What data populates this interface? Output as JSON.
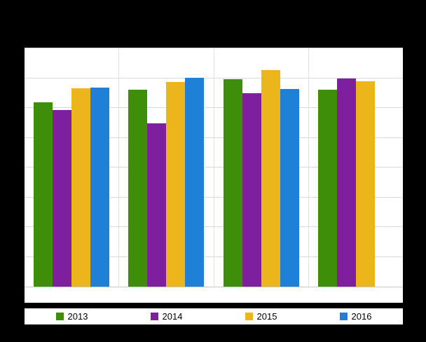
{
  "chart_data": {
    "type": "bar",
    "title": "",
    "xlabel": "",
    "ylabel": "",
    "categories": [
      "",
      "",
      "",
      ""
    ],
    "series": [
      {
        "name": "2013",
        "color": "#3e8e09",
        "values": [
          77.5,
          82.7,
          87.1,
          82.7
        ]
      },
      {
        "name": "2014",
        "color": "#7d1f9e",
        "values": [
          74.0,
          68.4,
          81.3,
          87.4
        ]
      },
      {
        "name": "2015",
        "color": "#edb51c",
        "values": [
          83.3,
          86.0,
          90.9,
          86.3
        ]
      },
      {
        "name": "2016",
        "color": "#1f80d8",
        "values": [
          83.6,
          87.7,
          83.0,
          null
        ]
      }
    ],
    "ylim": [
      0,
      100
    ],
    "gridlines": {
      "horizontal_divisions": 8,
      "color": "#d9d9d9",
      "vertical_group_separators": true
    },
    "legend_position": "bottom",
    "legend_labels": [
      "2013",
      "2014",
      "2015",
      "2016"
    ]
  },
  "colors": {
    "page_background": "#000000",
    "plot_background": "#ffffff",
    "legend_background": "#ffffff"
  }
}
